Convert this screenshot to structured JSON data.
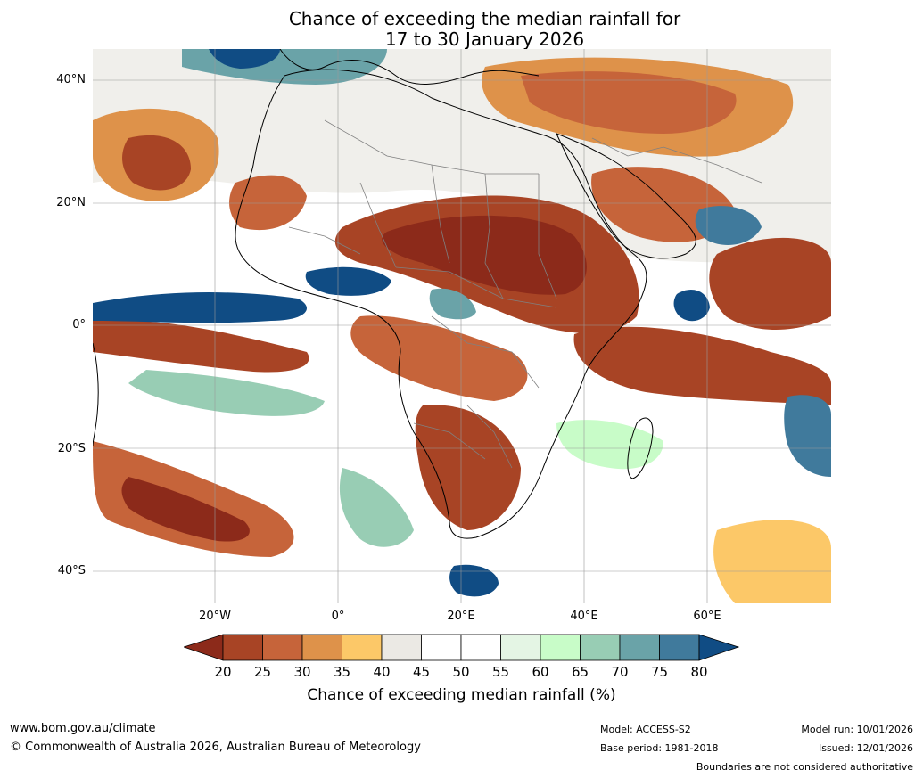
{
  "title": {
    "line1": "Chance of exceeding the median rainfall for",
    "line2": "17 to 30 January 2026"
  },
  "map": {
    "lat_labels": [
      "40°N",
      "20°N",
      "0°",
      "20°S",
      "40°S"
    ],
    "lon_labels": [
      "20°W",
      "0°",
      "20°E",
      "40°E",
      "60°E"
    ],
    "colors": {
      "below_20": "#8c2a1a",
      "c20_25": "#a84425",
      "c25_30": "#c6643a",
      "c30_35": "#de924a",
      "c35_40": "#fcc868",
      "c40_45": "#ebe9e4",
      "c45_55": "#ffffff",
      "c55_60": "#e4f5e4",
      "c60_65": "#c8fcc8",
      "c65_70": "#98cdb4",
      "c70_75": "#6aa3a8",
      "c75_80": "#407a9c",
      "above_80": "#104c84"
    }
  },
  "colorbar": {
    "ticks": [
      "20",
      "25",
      "30",
      "35",
      "40",
      "45",
      "50",
      "55",
      "60",
      "65",
      "70",
      "75",
      "80"
    ],
    "colors": [
      "#a84425",
      "#c6643a",
      "#de924a",
      "#fcc868",
      "#ebe9e4",
      "#ffffff",
      "#ffffff",
      "#e4f5e4",
      "#c8fcc8",
      "#98cdb4",
      "#6aa3a8",
      "#407a9c"
    ],
    "low_color": "#8c2a1a",
    "high_color": "#104c84",
    "label": "Chance of exceeding median rainfall (%)"
  },
  "footer": {
    "website": "www.bom.gov.au/climate",
    "copyright": "© Commonwealth of Australia 2026, Australian Bureau of Meteorology",
    "model": "Model: ACCESS-S2",
    "base_period": "Base period: 1981-2018",
    "model_run": "Model run: 10/01/2026",
    "issued": "Issued: 12/01/2026",
    "disclaimer": "Boundaries are not considered authoritative"
  }
}
